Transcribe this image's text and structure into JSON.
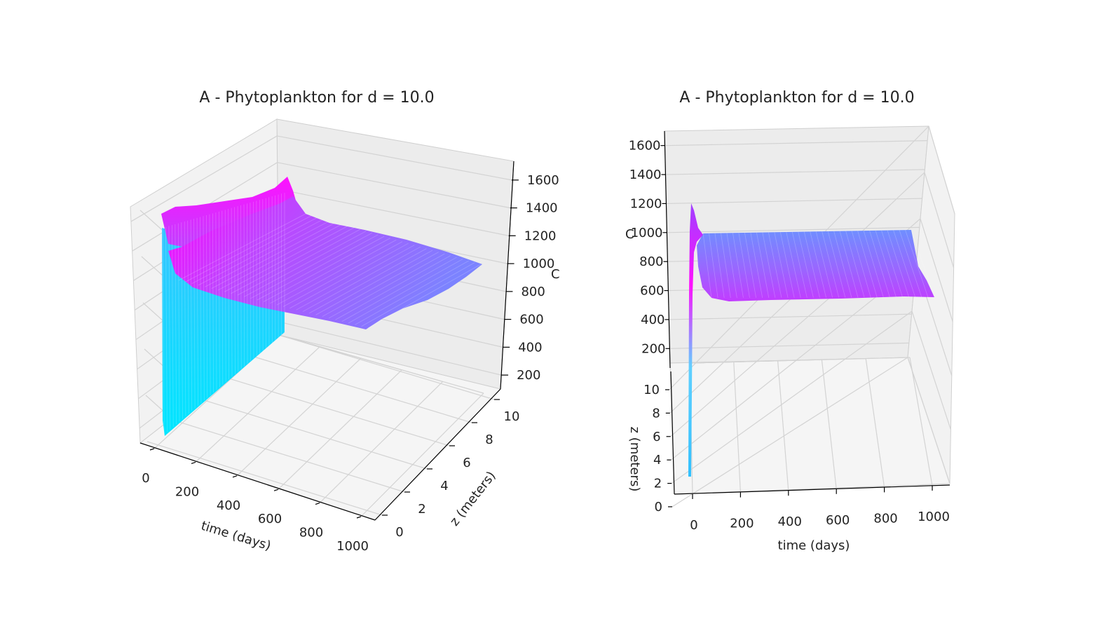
{
  "colors": {
    "low": "#00ffff",
    "high": "#ff00ff",
    "pane": "#f2f2f2",
    "grid": "#cfcfcf"
  },
  "chart_data": [
    {
      "type": "surface3d",
      "title": "A - Phytoplankton for d = 10.0",
      "xlabel": "time (days)",
      "ylabel": "z (meters)",
      "zlabel": "C",
      "x_ticks": [
        "0",
        "200",
        "400",
        "600",
        "800",
        "1000"
      ],
      "y_ticks": [
        "0",
        "2",
        "4",
        "6",
        "8",
        "10"
      ],
      "z_ticks": [
        "200",
        "400",
        "600",
        "800",
        "1000",
        "1200",
        "1400",
        "1600"
      ],
      "xlim": [
        0,
        1000
      ],
      "ylim": [
        0,
        10
      ],
      "zlim": [
        100,
        1700
      ],
      "colormap": "cool",
      "surface": {
        "time": [
          0,
          10,
          30,
          50,
          80,
          150,
          300,
          500,
          700,
          900,
          1000
        ],
        "depth": [
          0,
          2,
          4,
          6,
          8,
          10
        ],
        "C": [
          [
            0,
            1200,
            880,
            860,
            860,
            860,
            860,
            860,
            860,
            860,
            860
          ],
          [
            0,
            1230,
            920,
            880,
            875,
            870,
            870,
            870,
            870,
            870,
            870
          ],
          [
            0,
            1260,
            960,
            910,
            895,
            885,
            885,
            885,
            885,
            885,
            885
          ],
          [
            0,
            1300,
            1000,
            940,
            920,
            905,
            900,
            900,
            900,
            900,
            900
          ],
          [
            0,
            1360,
            1040,
            975,
            950,
            930,
            925,
            925,
            925,
            925,
            925
          ],
          [
            0,
            1420,
            1080,
            1010,
            980,
            955,
            950,
            950,
            950,
            950,
            950
          ]
        ]
      }
    },
    {
      "type": "surface3d",
      "title": "A - Phytoplankton for d = 10.0",
      "xlabel": "time (days)",
      "ylabel": "z (meters)",
      "zlabel": "C",
      "x_ticks": [
        "0",
        "200",
        "400",
        "600",
        "800",
        "1000"
      ],
      "y_ticks": [
        "0",
        "2",
        "4",
        "6",
        "8",
        "10"
      ],
      "z_ticks": [
        "200",
        "400",
        "600",
        "800",
        "1000",
        "1200",
        "1400",
        "1600"
      ],
      "xlim": [
        0,
        1000
      ],
      "ylim": [
        0,
        10
      ],
      "zlim": [
        100,
        1700
      ],
      "colormap": "cool"
    }
  ]
}
